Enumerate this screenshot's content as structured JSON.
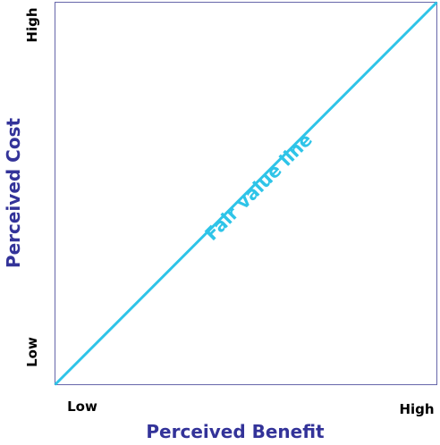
{
  "axes": {
    "x": {
      "title": "Perceived Benefit",
      "low": "Low",
      "high": "High"
    },
    "y": {
      "title": "Perceived Cost",
      "low": "Low",
      "high": "High"
    }
  },
  "line": {
    "label": "Fair value line"
  }
}
